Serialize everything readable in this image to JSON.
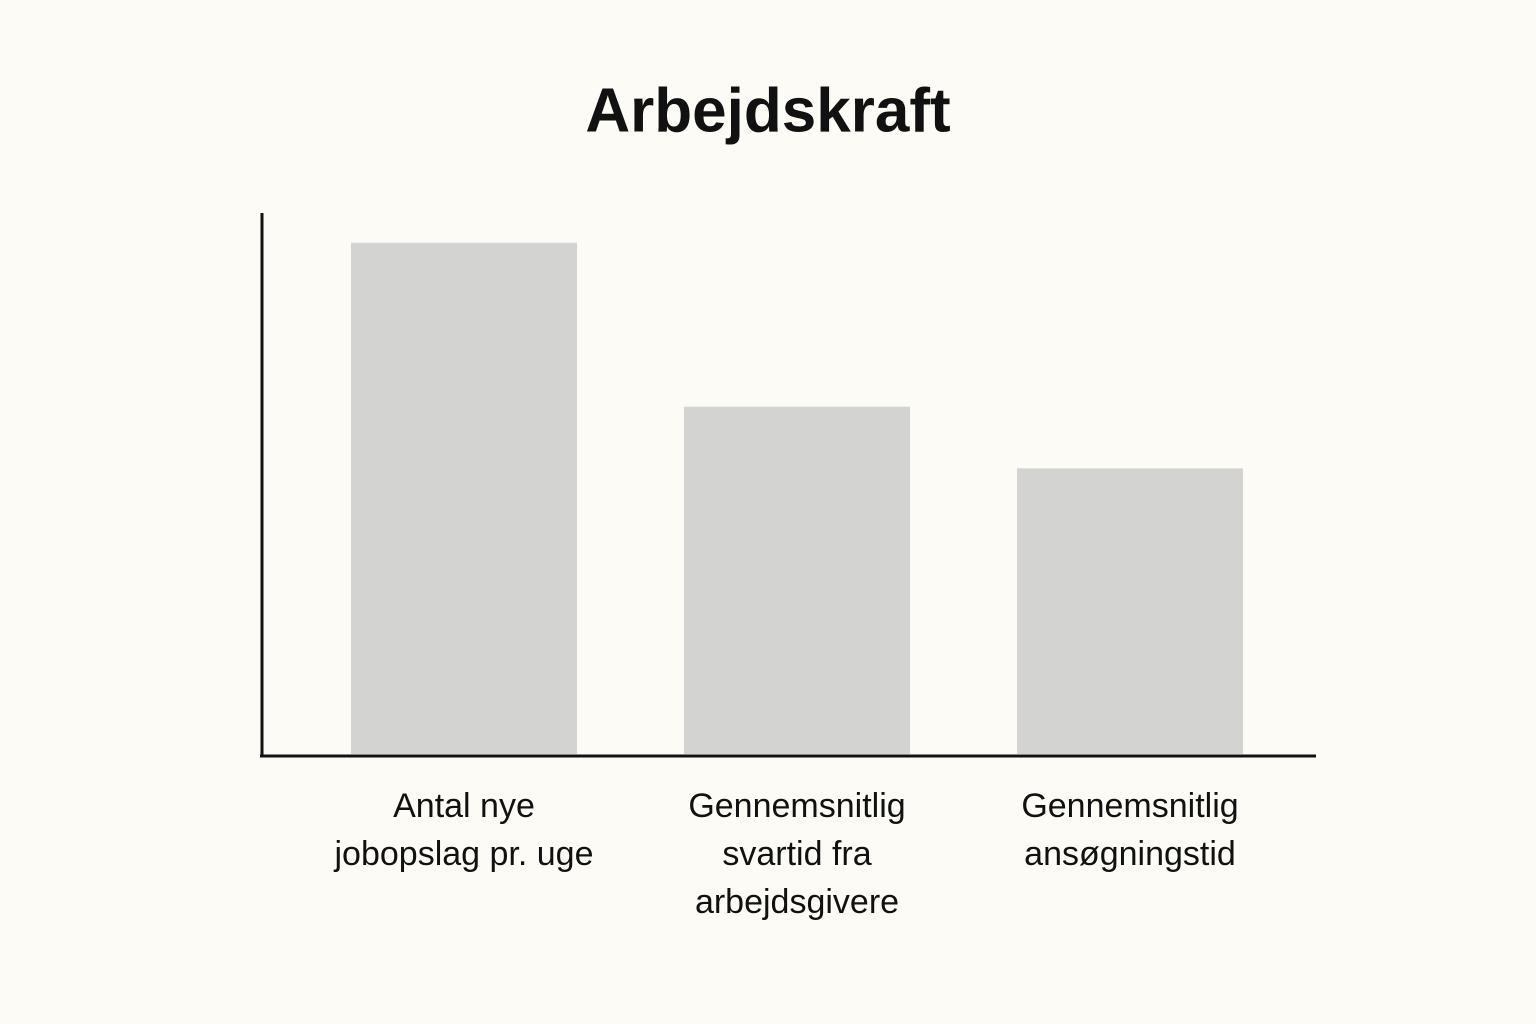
{
  "chart_data": {
    "type": "bar",
    "title": "Arbejdskraft",
    "categories": [
      [
        "Antal nye",
        "jobopslag pr. uge"
      ],
      [
        "Gennemsnitlig",
        "svartid fra",
        "arbejdsgivere"
      ],
      [
        "Gennemsnitlig",
        "ansøgningstid"
      ]
    ],
    "values": [
      94.5,
      64.2,
      52.8
    ],
    "color": "#d3d3d1",
    "ylim": [
      0,
      100
    ]
  }
}
